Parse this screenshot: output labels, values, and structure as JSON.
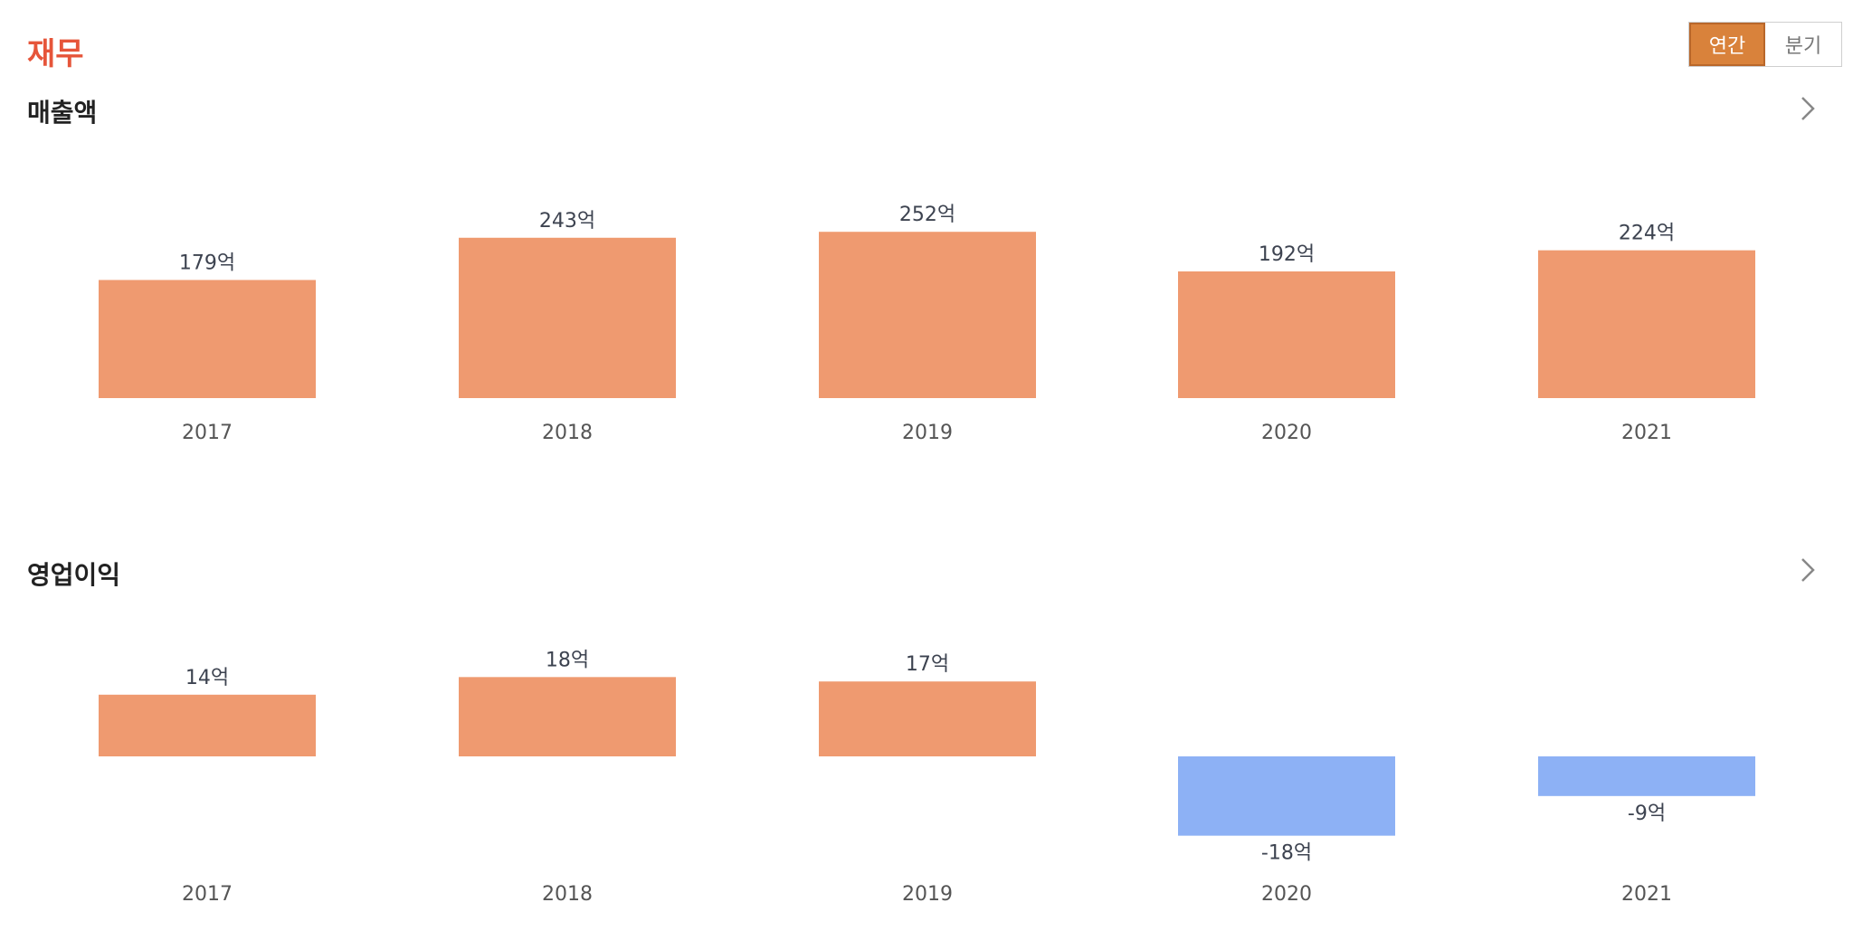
{
  "section_title": "재무",
  "toggle": {
    "annual_label": "연간",
    "quarterly_label": "분기",
    "selected": "annual"
  },
  "colors": {
    "accent": "#e6553a",
    "toggle_active": "#d9823b",
    "positive_bar": "#ef9a70",
    "negative_bar": "#8db1f5"
  },
  "icons": {
    "more": "chevron-right-icon"
  },
  "chart_data": [
    {
      "type": "bar",
      "title": "매출액",
      "categories": [
        "2017",
        "2018",
        "2019",
        "2020",
        "2021"
      ],
      "values": [
        179,
        243,
        252,
        192,
        224
      ],
      "labels": [
        "179억",
        "243억",
        "252억",
        "192억",
        "224억"
      ],
      "unit": "억",
      "grid": false
    },
    {
      "type": "bar",
      "title": "영업이익",
      "categories": [
        "2017",
        "2018",
        "2019",
        "2020",
        "2021"
      ],
      "values": [
        14,
        18,
        17,
        -18,
        -9
      ],
      "labels": [
        "14억",
        "18억",
        "17억",
        "-18억",
        "-9억"
      ],
      "unit": "억",
      "grid": false
    }
  ]
}
